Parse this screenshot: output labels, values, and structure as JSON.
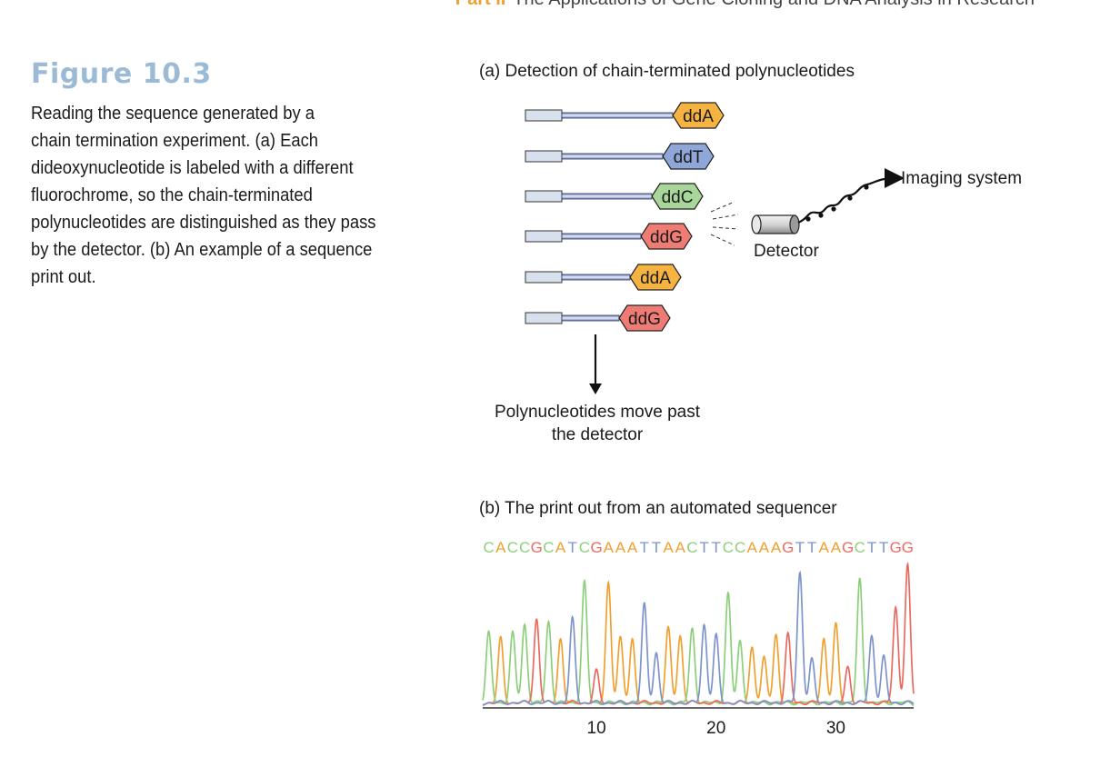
{
  "header": {
    "part": "Part II",
    "title": "The Applications of Gene Cloning and DNA Analysis in Research"
  },
  "figure": {
    "number": "Figure 10.3",
    "caption_lines": [
      "Reading the sequence generated by a",
      "chain termination experiment. (a) Each",
      "dideoxynucleotide is labeled with a different",
      "fluorochrome, so the chain-terminated",
      "polynucleotides are distinguished as they pass",
      "by the detector. (b) An example of a sequence",
      "print out."
    ]
  },
  "panel_a": {
    "label": "(a)  Detection of chain-terminated polynucleotides",
    "strands": [
      {
        "terminator": "ddA",
        "color": "#f5b342"
      },
      {
        "terminator": "ddT",
        "color": "#8fa7d8"
      },
      {
        "terminator": "ddC",
        "color": "#a9d69a"
      },
      {
        "terminator": "ddG",
        "color": "#ee7b74"
      },
      {
        "terminator": "ddA",
        "color": "#f5b342"
      },
      {
        "terminator": "ddG",
        "color": "#ee7b74"
      }
    ],
    "detector_label": "Detector",
    "imaging_label": "Imaging system",
    "movement_label_line1": "Polynucleotides move past",
    "movement_label_line2": "the detector"
  },
  "panel_b": {
    "label": "(b)  The print out from an automated sequencer",
    "sequence": "CACCGCATCGAAATTAACTTCCAAAGTTAAGCTTGG",
    "base_colors": {
      "A": "#f0a030",
      "C": "#8ccf7a",
      "G": "#ea6a60",
      "T": "#7d93cc"
    },
    "axis_ticks": [
      10,
      20,
      30
    ]
  },
  "chart_data": {
    "type": "line",
    "title": "",
    "xlabel": "",
    "ylabel": "",
    "x_ticks": [
      10,
      20,
      30
    ],
    "xlim": [
      0.5,
      36.5
    ],
    "sequence": "CACCGCATCGAAATTAACTTCCAAAGTTAAGCTTGG",
    "peak_heights": [
      0.52,
      0.48,
      0.52,
      0.58,
      0.62,
      0.6,
      0.48,
      0.62,
      0.88,
      0.25,
      0.88,
      0.48,
      0.48,
      0.72,
      0.38,
      0.55,
      0.5,
      0.55,
      0.58,
      0.5,
      0.8,
      0.46,
      0.42,
      0.34,
      0.51,
      0.51,
      0.95,
      0.33,
      0.48,
      0.58,
      0.28,
      0.9,
      0.5,
      0.35,
      0.7,
      1.0
    ]
  }
}
